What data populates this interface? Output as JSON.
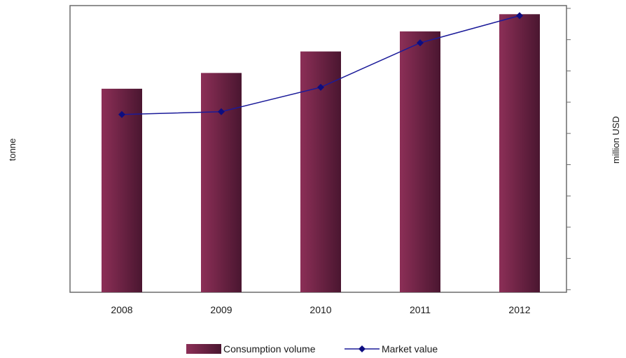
{
  "chart_data": {
    "type": "bar",
    "categories": [
      "2008",
      "2009",
      "2010",
      "2011",
      "2012"
    ],
    "series": [
      {
        "name": "Consumption volume",
        "type": "bar",
        "axis": "left",
        "values": [
          71,
          76.5,
          84,
          91,
          97
        ]
      },
      {
        "name": "Market value",
        "type": "line",
        "axis": "right",
        "values": [
          62,
          63,
          71.5,
          87,
          96.5
        ]
      }
    ],
    "ylabel": "tonne",
    "y2label": "million USD",
    "ylim": [
      0,
      100
    ],
    "y2lim": [
      0,
      100
    ],
    "grid": false,
    "legend": "bottom-center",
    "colors": {
      "bar": "#8c2f57",
      "bar_dark": "#4a1630",
      "line": "#1a1a99",
      "marker": "#0d0d80"
    }
  }
}
